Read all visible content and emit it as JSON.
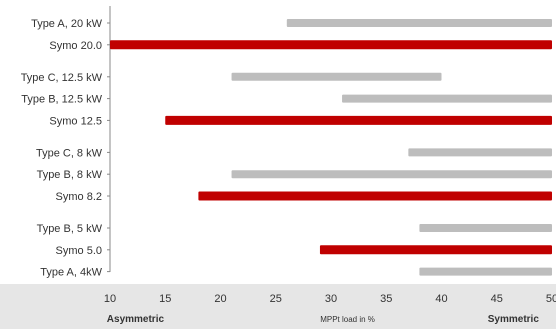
{
  "chart_data": {
    "type": "bar",
    "orientation": "horizontal",
    "bar_style": "floating-range",
    "title": "",
    "xlabel": "MPPt load in %",
    "x_end_labels": {
      "left": "Asymmetric",
      "right": "Symmetric"
    },
    "xlim": [
      10,
      50
    ],
    "xticks": [
      10,
      15,
      20,
      25,
      30,
      35,
      40,
      45,
      50
    ],
    "grid": false,
    "colors": {
      "competitor": "#bdbdbd",
      "symo": "#c00000",
      "plot_background": "#ffffff",
      "page_background": "#e6e6e6"
    },
    "groups": [
      {
        "items": [
          {
            "label": "Type A, 20 kW",
            "start": 26,
            "end": 50,
            "kind": "competitor"
          },
          {
            "label": "Symo 20.0",
            "start": 10,
            "end": 50,
            "kind": "symo"
          }
        ]
      },
      {
        "items": [
          {
            "label": "Type C, 12.5 kW",
            "start": 21,
            "end": 40,
            "kind": "competitor"
          },
          {
            "label": "Type B, 12.5 kW",
            "start": 31,
            "end": 50,
            "kind": "competitor"
          },
          {
            "label": "Symo 12.5",
            "start": 15,
            "end": 50,
            "kind": "symo"
          }
        ]
      },
      {
        "items": [
          {
            "label": "Type C, 8 kW",
            "start": 37,
            "end": 50,
            "kind": "competitor"
          },
          {
            "label": "Type B, 8 kW",
            "start": 21,
            "end": 50,
            "kind": "competitor"
          },
          {
            "label": "Symo 8.2",
            "start": 18,
            "end": 50,
            "kind": "symo"
          }
        ]
      },
      {
        "items": [
          {
            "label": "Type B, 5 kW",
            "start": 38,
            "end": 50,
            "kind": "competitor"
          },
          {
            "label": "Symo 5.0",
            "start": 29,
            "end": 50,
            "kind": "symo"
          },
          {
            "label": "Type A, 4kW",
            "start": 38,
            "end": 50,
            "kind": "competitor"
          }
        ]
      }
    ]
  }
}
